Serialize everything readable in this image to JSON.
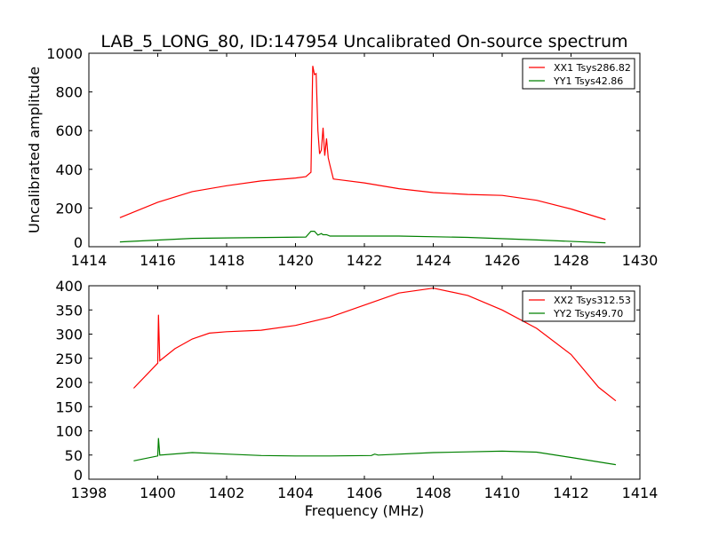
{
  "chart_data": [
    {
      "type": "line",
      "title": "LAB_5_LONG_80, ID:147954 Uncalibrated On-source spectrum",
      "xlabel": "",
      "ylabel": "Uncalibrated amplitude",
      "xlim": [
        1414,
        1430
      ],
      "ylim": [
        0,
        1000
      ],
      "xticks": [
        1414,
        1416,
        1418,
        1420,
        1422,
        1424,
        1426,
        1428,
        1430
      ],
      "yticks": [
        0,
        200,
        400,
        600,
        800,
        1000
      ],
      "legend": "top-right",
      "series": [
        {
          "name": "XX1 Tsys286.82",
          "color": "#ff0000",
          "x": [
            1414.9,
            1416,
            1417,
            1418,
            1419,
            1420,
            1420.3,
            1420.45,
            1420.5,
            1420.55,
            1420.6,
            1420.65,
            1420.7,
            1420.75,
            1420.8,
            1420.85,
            1420.9,
            1420.95,
            1421.0,
            1421.1,
            1422,
            1423,
            1424,
            1425,
            1426,
            1427,
            1428,
            1429
          ],
          "y": [
            150,
            230,
            285,
            315,
            340,
            355,
            362,
            385,
            935,
            890,
            895,
            600,
            480,
            500,
            615,
            470,
            560,
            460,
            420,
            350,
            330,
            300,
            280,
            270,
            265,
            240,
            195,
            140
          ]
        },
        {
          "name": "YY1 Tsys42.86",
          "color": "#008000",
          "x": [
            1414.9,
            1417,
            1420.3,
            1420.45,
            1420.55,
            1420.65,
            1420.75,
            1420.8,
            1420.9,
            1421,
            1423,
            1425,
            1427,
            1429
          ],
          "y": [
            25,
            43,
            50,
            80,
            80,
            60,
            68,
            62,
            62,
            55,
            55,
            48,
            35,
            20
          ]
        }
      ]
    },
    {
      "type": "line",
      "title": "",
      "xlabel": "Frequency (MHz)",
      "ylabel": "",
      "xlim": [
        1398,
        1414
      ],
      "ylim": [
        0,
        400
      ],
      "xticks": [
        1398,
        1400,
        1402,
        1404,
        1406,
        1408,
        1410,
        1412,
        1414
      ],
      "yticks": [
        0,
        50,
        100,
        150,
        200,
        250,
        300,
        350,
        400
      ],
      "legend": "top-right",
      "series": [
        {
          "name": "XX2 Tsys312.53",
          "color": "#ff0000",
          "x": [
            1399.3,
            1400,
            1400.02,
            1400.06,
            1400.5,
            1401,
            1401.5,
            1402,
            1403,
            1404,
            1405,
            1406,
            1407,
            1408,
            1409,
            1410,
            1411,
            1412,
            1412.8,
            1413.3
          ],
          "y": [
            188,
            240,
            340,
            245,
            270,
            290,
            302,
            305,
            308,
            318,
            335,
            360,
            385,
            395,
            380,
            350,
            312,
            258,
            190,
            162
          ]
        },
        {
          "name": "YY2 Tsys49.70",
          "color": "#008000",
          "x": [
            1399.3,
            1400,
            1400.02,
            1400.06,
            1401,
            1402,
            1403,
            1404,
            1405,
            1406.2,
            1406.3,
            1406.4,
            1408,
            1410,
            1411,
            1412,
            1413.3
          ],
          "y": [
            38,
            48,
            85,
            50,
            55,
            52,
            49,
            48,
            48,
            49,
            52,
            50,
            55,
            58,
            56,
            45,
            30
          ]
        }
      ]
    }
  ]
}
